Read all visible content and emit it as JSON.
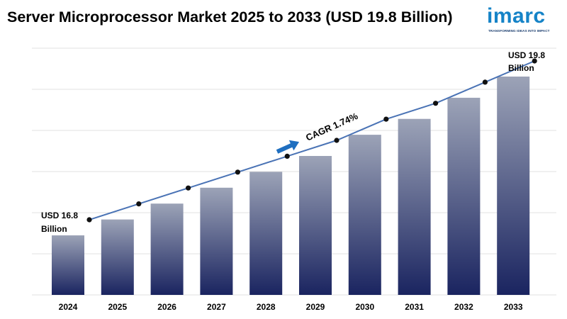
{
  "title": "Server Microprocessor Market 2025 to 2033 (USD 19.8 Billion)",
  "logo": {
    "word": "imarc",
    "tagline": "TRANSFORMING IDEAS INTO IMPACT"
  },
  "colors": {
    "bar_top": "#9ca3b7",
    "bar_bottom": "#1a2460",
    "line": "#4a73b5",
    "arrow": "#1f6fc0",
    "grid": "#e2e2e2"
  },
  "chart_data": {
    "type": "bar",
    "categories": [
      "2024",
      "2025",
      "2026",
      "2027",
      "2028",
      "2029",
      "2030",
      "2031",
      "2032",
      "2033"
    ],
    "values": [
      16.8,
      17.1,
      17.4,
      17.7,
      18.0,
      18.3,
      18.7,
      19.0,
      19.4,
      19.8
    ],
    "trend_line": true,
    "grid": true,
    "annotations": {
      "start_line1": "USD 16.8",
      "start_line2": "Billion",
      "end_line1": "USD 19.8",
      "end_line2": "Billion",
      "cagr": "CAGR 1.74%"
    }
  }
}
